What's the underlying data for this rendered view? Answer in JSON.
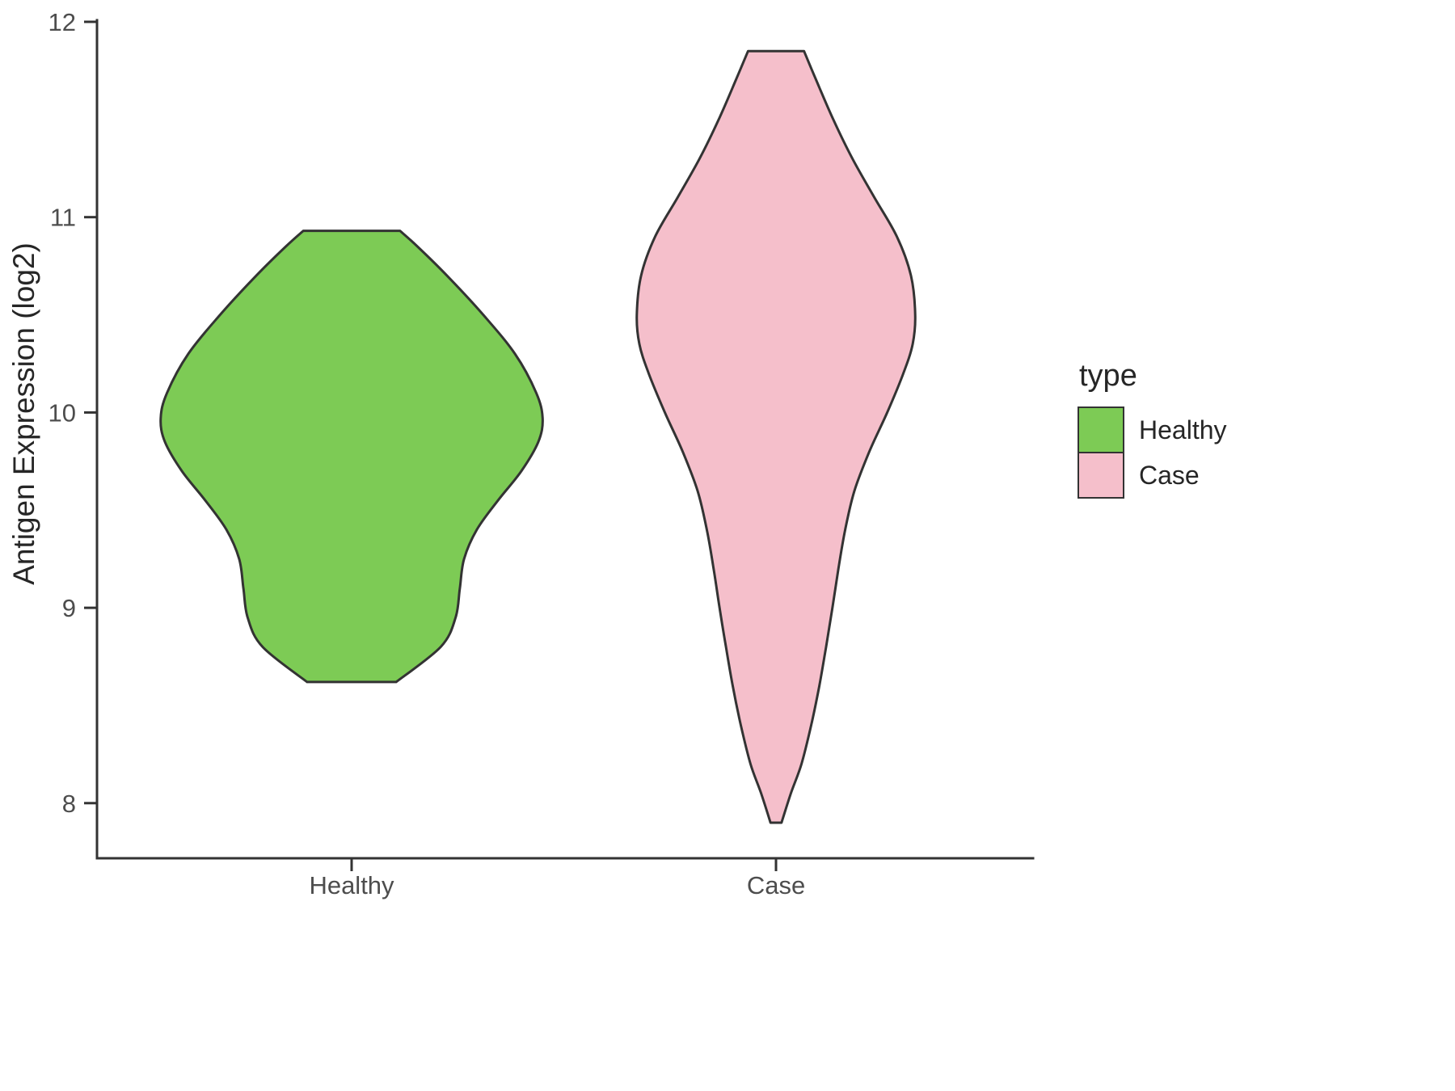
{
  "colors": {
    "healthy": "#7DCB55",
    "case": "#F5BFCB",
    "outline": "#333333",
    "axis_text": "#4D4D4D",
    "text": "#262626",
    "background": "#FFFFFF"
  },
  "chart_data": {
    "type": "violin",
    "title": "",
    "xlabel": "",
    "ylabel": "Antigen Expression (log2)",
    "categories": [
      "Healthy",
      "Case"
    ],
    "ylim": [
      7.7,
      12.05
    ],
    "yticks": [
      8,
      9,
      10,
      11,
      12
    ],
    "grid": false,
    "legend": {
      "title": "type",
      "position": "right",
      "entries": [
        {
          "label": "Healthy",
          "color": "#7DCB55"
        },
        {
          "label": "Case",
          "color": "#F5BFCB"
        }
      ]
    },
    "series": [
      {
        "name": "Healthy",
        "fill": "#7DCB55",
        "y_min": 8.62,
        "y_max": 10.93,
        "widest_at": 9.97,
        "profile": [
          [
            10.93,
            0.114
          ],
          [
            10.85,
            0.155
          ],
          [
            10.7,
            0.225
          ],
          [
            10.5,
            0.31
          ],
          [
            10.3,
            0.385
          ],
          [
            10.1,
            0.435
          ],
          [
            9.97,
            0.45
          ],
          [
            9.85,
            0.44
          ],
          [
            9.7,
            0.4
          ],
          [
            9.55,
            0.345
          ],
          [
            9.4,
            0.295
          ],
          [
            9.25,
            0.265
          ],
          [
            9.1,
            0.255
          ],
          [
            8.95,
            0.245
          ],
          [
            8.8,
            0.21
          ],
          [
            8.62,
            0.105
          ]
        ]
      },
      {
        "name": "Case",
        "fill": "#F5BFCB",
        "y_min": 7.9,
        "y_max": 11.85,
        "widest_at": 10.5,
        "profile": [
          [
            11.85,
            0.066
          ],
          [
            11.7,
            0.095
          ],
          [
            11.5,
            0.135
          ],
          [
            11.3,
            0.18
          ],
          [
            11.1,
            0.232
          ],
          [
            10.9,
            0.285
          ],
          [
            10.7,
            0.318
          ],
          [
            10.5,
            0.328
          ],
          [
            10.35,
            0.322
          ],
          [
            10.2,
            0.3
          ],
          [
            10.0,
            0.262
          ],
          [
            9.8,
            0.22
          ],
          [
            9.6,
            0.185
          ],
          [
            9.4,
            0.163
          ],
          [
            9.2,
            0.147
          ],
          [
            9.0,
            0.133
          ],
          [
            8.8,
            0.118
          ],
          [
            8.6,
            0.102
          ],
          [
            8.4,
            0.083
          ],
          [
            8.2,
            0.06
          ],
          [
            8.05,
            0.035
          ],
          [
            7.9,
            0.013
          ]
        ]
      }
    ]
  }
}
